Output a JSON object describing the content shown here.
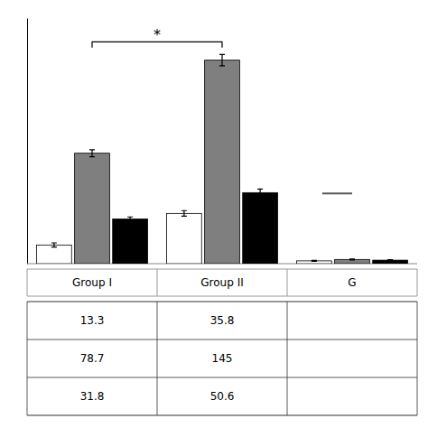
{
  "chart_data": {
    "type": "bar",
    "categories": [
      "Group I",
      "Group II",
      "G"
    ],
    "series": [
      {
        "color": "#FFFFFF",
        "values": [
          13.3,
          35.8,
          2.0
        ],
        "errors": [
          1.5,
          2.0,
          0.3
        ],
        "value_labels": [
          "13.3",
          "35.8",
          null
        ]
      },
      {
        "color": "#7f7f7f",
        "values": [
          78.7,
          145.0,
          3.0
        ],
        "errors": [
          2.5,
          4.0,
          0.3
        ],
        "value_labels": [
          "78.7",
          "145",
          null
        ]
      },
      {
        "color": "#000000",
        "values": [
          31.8,
          50.6,
          2.5
        ],
        "errors": [
          1.5,
          2.5,
          0.3
        ],
        "value_labels": [
          "31.8",
          "50.6",
          null
        ]
      }
    ],
    "ylim": [
      0,
      175
    ],
    "tick_labels": false,
    "annotations": [
      {
        "type": "bracket",
        "text": "*",
        "y": 158,
        "tick_height": 4,
        "categories": [
          "Group I",
          "Group II"
        ],
        "series": 1
      },
      {
        "type": "line",
        "y": 50,
        "category": "G",
        "color": "#555555"
      }
    ]
  }
}
